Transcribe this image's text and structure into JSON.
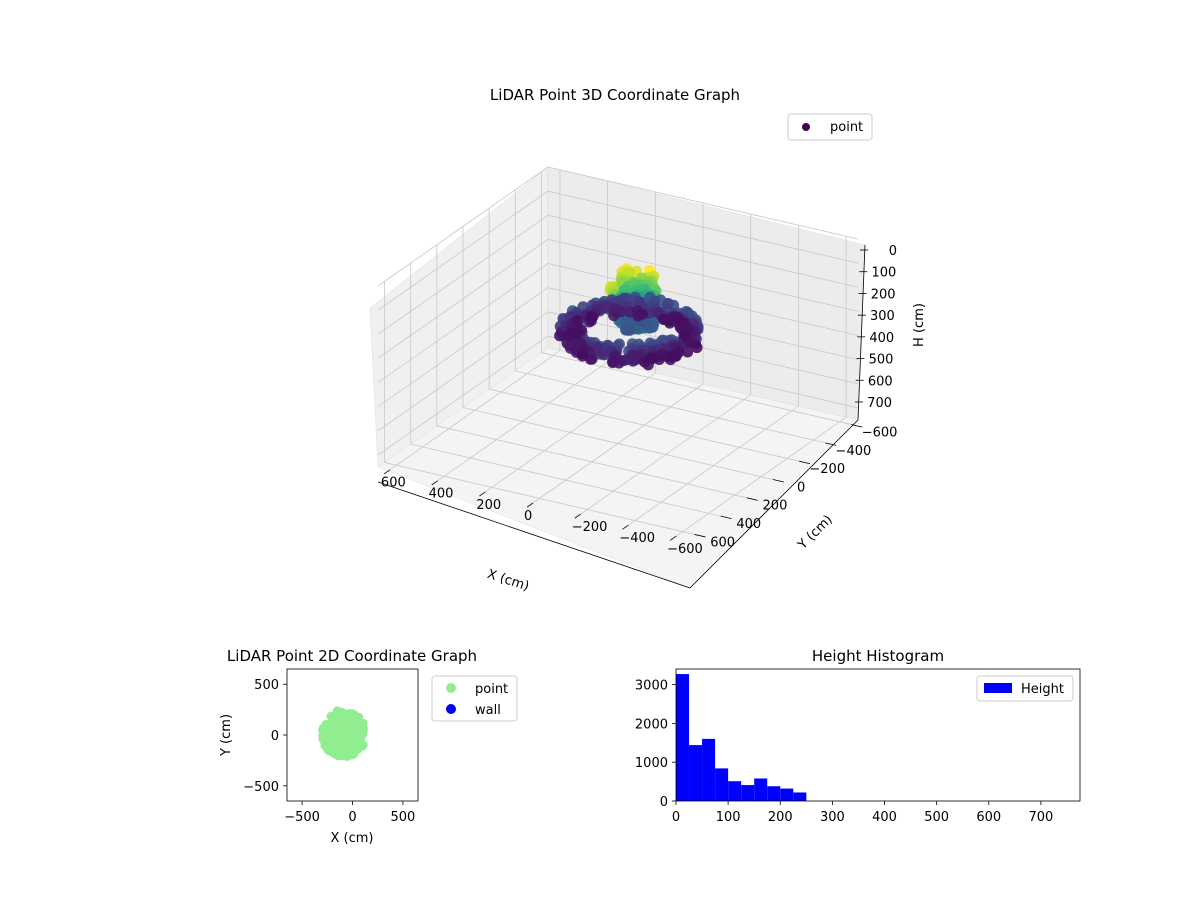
{
  "chart_data": [
    {
      "type": "scatter3d",
      "title": "LiDAR Point 3D Coordinate Graph",
      "xlabel": "X (cm)",
      "ylabel": "Y (cm)",
      "zlabel": "H (cm)",
      "xticks": [
        "−600",
        "−400",
        "−200",
        "0",
        "200",
        "400",
        "600"
      ],
      "yticks": [
        "600",
        "400",
        "200",
        "0",
        "−200",
        "−400",
        "−600"
      ],
      "zticks": [
        "0",
        "100",
        "200",
        "300",
        "400",
        "500",
        "600",
        "700"
      ],
      "xlim": [
        -650,
        650
      ],
      "ylim": [
        -650,
        650
      ],
      "zlim": [
        0,
        750
      ],
      "zinverted": true,
      "colormap": "viridis",
      "legend": {
        "position": "top-right",
        "entries": [
          {
            "label": "point",
            "color": "#440154"
          }
        ]
      }
    },
    {
      "type": "scatter",
      "title": "LiDAR Point 2D Coordinate Graph",
      "xlabel": "X (cm)",
      "ylabel": "Y (cm)",
      "xlim": [
        -650,
        650
      ],
      "ylim": [
        -650,
        650
      ],
      "xticks": [
        "−500",
        "0",
        "500"
      ],
      "yticks": [
        "500",
        "0",
        "−500"
      ],
      "legend": {
        "position": "outside-right",
        "entries": [
          {
            "label": "point",
            "color": "#90ee90"
          },
          {
            "label": "wall",
            "color": "#0000ff"
          }
        ]
      },
      "point_cloud": {
        "center": [
          -90,
          0
        ],
        "extent_x": [
          -320,
          150
        ],
        "extent_y": [
          -240,
          270
        ]
      }
    },
    {
      "type": "bar",
      "title": "Height Histogram",
      "xlabel": "",
      "ylabel": "",
      "xlim": [
        0,
        775
      ],
      "ylim": [
        0,
        3400
      ],
      "xticks": [
        "0",
        "100",
        "200",
        "300",
        "400",
        "500",
        "600",
        "700"
      ],
      "yticks": [
        "0",
        "1000",
        "2000",
        "3000"
      ],
      "bin_width": 25,
      "bins": [
        0,
        25,
        50,
        75,
        100,
        125,
        150,
        175,
        200,
        225,
        250
      ],
      "counts": [
        3270,
        1440,
        1600,
        840,
        510,
        410,
        580,
        380,
        320,
        220,
        0
      ],
      "bar_color": "#0000ff",
      "legend": {
        "position": "top-right",
        "entries": [
          {
            "label": "Height",
            "color": "#0000ff"
          }
        ]
      }
    }
  ]
}
